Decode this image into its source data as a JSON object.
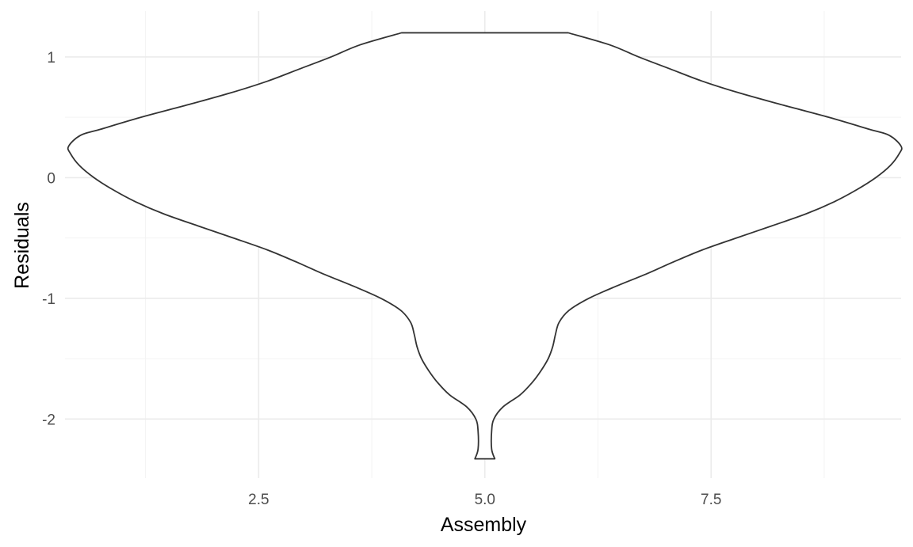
{
  "chart_data": {
    "type": "violin",
    "title": "",
    "xlabel": "Assembly",
    "ylabel": "Residuals",
    "xlim": [
      0.36,
      9.6
    ],
    "ylim": [
      -2.49,
      1.38
    ],
    "x_ticks": [
      {
        "value": 2.5,
        "label": "2.5"
      },
      {
        "value": 5.0,
        "label": "5.0"
      },
      {
        "value": 7.5,
        "label": "7.5"
      }
    ],
    "x_minor_ticks": [
      1.25,
      3.75,
      6.25,
      8.75
    ],
    "y_ticks": [
      {
        "value": 1,
        "label": "1"
      },
      {
        "value": 0,
        "label": "0"
      },
      {
        "value": -1,
        "label": "-1"
      },
      {
        "value": -2,
        "label": "-2"
      }
    ],
    "y_minor_ticks": [
      0.5,
      -0.5,
      -1.5
    ],
    "grid": true,
    "series": [
      {
        "center_x": 5.0,
        "fill": "#ffffff",
        "stroke": "#333333",
        "y_min": -2.33,
        "y_max": 1.2,
        "profile": [
          {
            "y": -2.33,
            "half_width": 0.11
          },
          {
            "y": -2.25,
            "half_width": 0.075
          },
          {
            "y": -2.1,
            "half_width": 0.075
          },
          {
            "y": -2.0,
            "half_width": 0.1
          },
          {
            "y": -1.9,
            "half_width": 0.2
          },
          {
            "y": -1.8,
            "half_width": 0.39
          },
          {
            "y": -1.7,
            "half_width": 0.52
          },
          {
            "y": -1.6,
            "half_width": 0.62
          },
          {
            "y": -1.5,
            "half_width": 0.7
          },
          {
            "y": -1.4,
            "half_width": 0.75
          },
          {
            "y": -1.3,
            "half_width": 0.78
          },
          {
            "y": -1.2,
            "half_width": 0.82
          },
          {
            "y": -1.1,
            "half_width": 0.93
          },
          {
            "y": -1.0,
            "half_width": 1.15
          },
          {
            "y": -0.9,
            "half_width": 1.45
          },
          {
            "y": -0.8,
            "half_width": 1.78
          },
          {
            "y": -0.7,
            "half_width": 2.08
          },
          {
            "y": -0.6,
            "half_width": 2.4
          },
          {
            "y": -0.5,
            "half_width": 2.78
          },
          {
            "y": -0.4,
            "half_width": 3.17
          },
          {
            "y": -0.3,
            "half_width": 3.55
          },
          {
            "y": -0.2,
            "half_width": 3.86
          },
          {
            "y": -0.1,
            "half_width": 4.11
          },
          {
            "y": 0.0,
            "half_width": 4.32
          },
          {
            "y": 0.1,
            "half_width": 4.48
          },
          {
            "y": 0.2,
            "half_width": 4.58
          },
          {
            "y": 0.26,
            "half_width": 4.6
          },
          {
            "y": 0.35,
            "half_width": 4.47
          },
          {
            "y": 0.4,
            "half_width": 4.25
          },
          {
            "y": 0.5,
            "half_width": 3.8
          },
          {
            "y": 0.6,
            "half_width": 3.3
          },
          {
            "y": 0.7,
            "half_width": 2.82
          },
          {
            "y": 0.8,
            "half_width": 2.4
          },
          {
            "y": 0.9,
            "half_width": 2.05
          },
          {
            "y": 1.0,
            "half_width": 1.7
          },
          {
            "y": 1.1,
            "half_width": 1.38
          },
          {
            "y": 1.2,
            "half_width": 0.92
          }
        ]
      }
    ]
  }
}
